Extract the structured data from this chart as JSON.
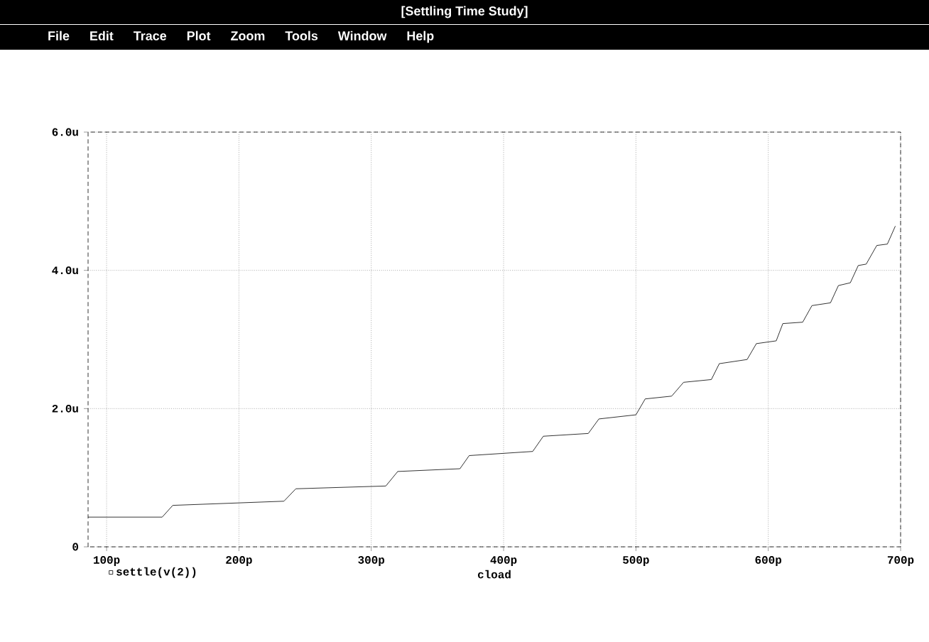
{
  "chart_data": {
    "type": "line",
    "title": "[Settling Time Study]",
    "annotations": [
      "File",
      "Edit",
      "Trace",
      "Plot",
      "Zoom",
      "Tools",
      "Window",
      "Help"
    ],
    "xlabel": "cload",
    "x": [
      86,
      142,
      150,
      234,
      243,
      311,
      320,
      367,
      374,
      422,
      430,
      464,
      472,
      500,
      507,
      527,
      536,
      557,
      563,
      584,
      591,
      606,
      611,
      626,
      633,
      647,
      653,
      662,
      668,
      674,
      682,
      690,
      696
    ],
    "series": [
      {
        "name": "settle(v(2))",
        "color": "#000000",
        "values": [
          0.43,
          0.43,
          0.6,
          0.66,
          0.84,
          0.88,
          1.09,
          1.13,
          1.32,
          1.38,
          1.6,
          1.64,
          1.85,
          1.91,
          2.14,
          2.18,
          2.38,
          2.42,
          2.65,
          2.71,
          2.94,
          2.98,
          3.23,
          3.25,
          3.49,
          3.53,
          3.78,
          3.82,
          4.07,
          4.09,
          4.36,
          4.38,
          4.64
        ]
      }
    ],
    "xlim": [
      86,
      700
    ],
    "xticks": [
      {
        "value": 100,
        "label": "100p"
      },
      {
        "value": 200,
        "label": "200p"
      },
      {
        "value": 300,
        "label": "300p"
      },
      {
        "value": 400,
        "label": "400p"
      },
      {
        "value": 500,
        "label": "500p"
      },
      {
        "value": 600,
        "label": "600p"
      },
      {
        "value": 700,
        "label": "700p"
      }
    ],
    "ylim": [
      0,
      6
    ],
    "yticks": [
      {
        "value": 0,
        "label": "0"
      },
      {
        "value": 2,
        "label": "2.0u"
      },
      {
        "value": 4,
        "label": "4.0u"
      },
      {
        "value": 6,
        "label": "6.0u"
      }
    ],
    "grid": true,
    "legend": "bottom left",
    "marker": "none",
    "line_style": "solid"
  }
}
